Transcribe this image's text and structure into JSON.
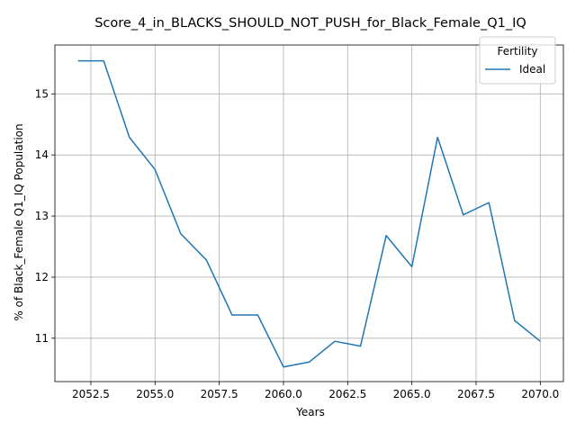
{
  "chart_data": {
    "type": "line",
    "title": "Score_4_in_BLACKS_SHOULD_NOT_PUSH_for_Black_Female_Q1_IQ",
    "xlabel": "Years",
    "ylabel": "% of Black_Female Q1_IQ Population",
    "xlim": [
      2051.1,
      2070.9
    ],
    "ylim": [
      10.29,
      15.8
    ],
    "x_ticks": [
      2052.5,
      2055.0,
      2057.5,
      2060.0,
      2062.5,
      2065.0,
      2067.5,
      2070.0
    ],
    "x_tick_labels": [
      "2052.5",
      "2055.0",
      "2057.5",
      "2060.0",
      "2062.5",
      "2065.0",
      "2067.5",
      "2070.0"
    ],
    "y_ticks": [
      11,
      12,
      13,
      14,
      15
    ],
    "y_tick_labels": [
      "11",
      "12",
      "13",
      "14",
      "15"
    ],
    "grid": true,
    "legend": {
      "title": "Fertility",
      "placement": "top-right"
    },
    "series": [
      {
        "name": "Ideal",
        "color": "#1f77b4",
        "x": [
          2052,
          2053,
          2054,
          2055,
          2056,
          2057,
          2058,
          2059,
          2060,
          2061,
          2062,
          2063,
          2064,
          2065,
          2066,
          2067,
          2068,
          2069,
          2070
        ],
        "y": [
          15.54,
          15.54,
          14.29,
          13.76,
          12.71,
          12.28,
          11.38,
          11.38,
          10.53,
          10.61,
          10.95,
          10.87,
          12.68,
          12.17,
          14.29,
          13.02,
          13.22,
          11.29,
          10.95
        ]
      }
    ]
  }
}
